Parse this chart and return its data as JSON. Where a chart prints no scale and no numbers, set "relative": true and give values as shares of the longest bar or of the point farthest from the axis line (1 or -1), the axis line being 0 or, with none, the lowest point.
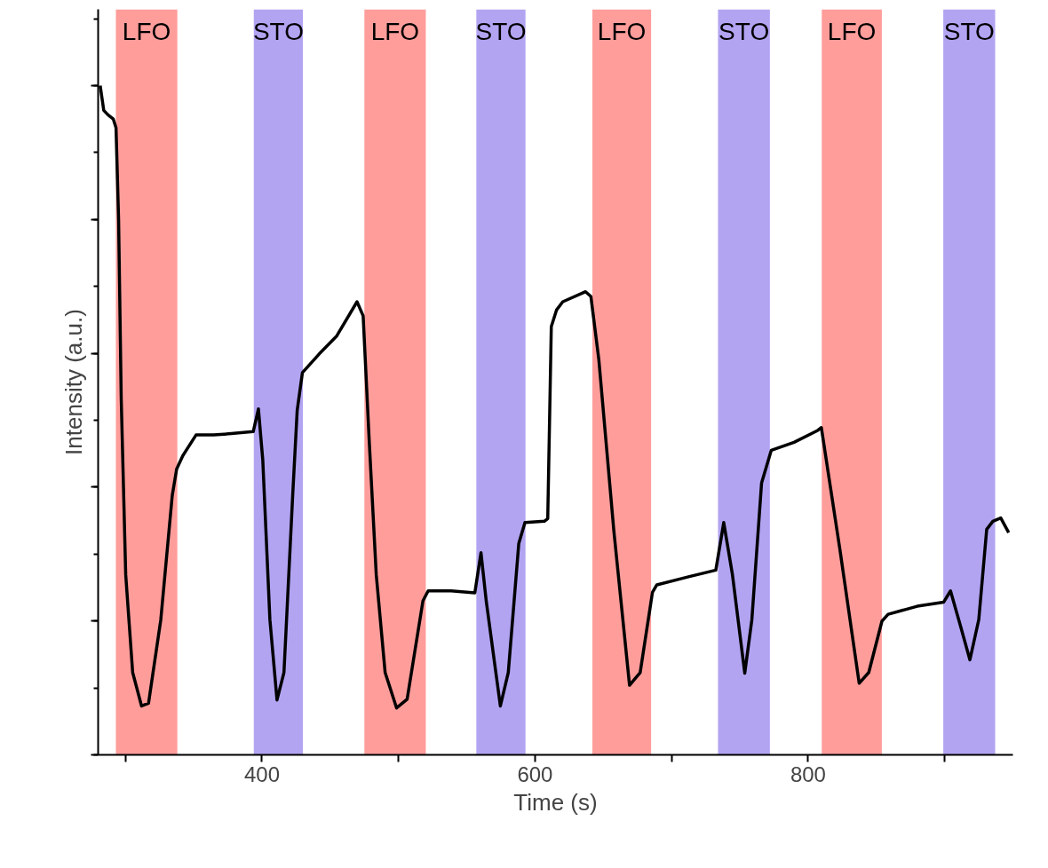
{
  "chart_data": {
    "type": "line",
    "xlabel": "Time (s)",
    "ylabel": "Intensity (a.u.)",
    "relative": true,
    "grid": false,
    "marker": "none",
    "line_style": "solid",
    "xlim": [
      280,
      950
    ],
    "xticks": [
      {
        "value": 300,
        "label": null
      },
      400,
      {
        "value": 500,
        "label": null
      },
      600,
      {
        "value": 700,
        "label": null
      },
      800,
      {
        "value": 900,
        "label": null
      }
    ],
    "bands": [
      {
        "axis": "x",
        "from": 293,
        "to": 338,
        "label": "LFO",
        "color": "#ff9d9b"
      },
      {
        "axis": "x",
        "from": 394,
        "to": 430,
        "label": "STO",
        "color": "#b3a4f2"
      },
      {
        "axis": "x",
        "from": 475,
        "to": 520,
        "label": "LFO",
        "color": "#ff9d9b"
      },
      {
        "axis": "x",
        "from": 557,
        "to": 593,
        "label": "STO",
        "color": "#b3a4f2"
      },
      {
        "axis": "x",
        "from": 642,
        "to": 685,
        "label": "LFO",
        "color": "#ff9d9b"
      },
      {
        "axis": "x",
        "from": 734,
        "to": 772,
        "label": "STO",
        "color": "#b3a4f2"
      },
      {
        "axis": "x",
        "from": 810,
        "to": 854,
        "label": "LFO",
        "color": "#ff9d9b"
      },
      {
        "axis": "x",
        "from": 899,
        "to": 937,
        "label": "STO",
        "color": "#b3a4f2"
      }
    ],
    "series": [
      {
        "color": "#000000",
        "x": [
          281.5,
          284.1,
          287.4,
          291.1,
          293.1,
          295.0,
          296.9,
          300.2,
          305.3,
          311.8,
          316.9,
          325.9,
          334.3,
          337.5,
          342.0,
          351.7,
          364.6,
          377.5,
          393.6,
          397.4,
          400.6,
          405.8,
          411.0,
          416.1,
          422.5,
          425.8,
          429.6,
          441.9,
          454.8,
          469.6,
          474.1,
          478.6,
          483.7,
          490.2,
          498.6,
          506.3,
          517.9,
          521.7,
          538.5,
          555.9,
          560.4,
          564.3,
          574.6,
          580.4,
          588.1,
          592.6,
          606.8,
          609.3,
          611.9,
          615.8,
          620.3,
          637.0,
          640.9,
          646.7,
          657.7,
          669.2,
          677.0,
          686.0,
          689.2,
          712.4,
          732.4,
          738.2,
          744.6,
          753.6,
          758.8,
          765.9,
          773.0,
          789.7,
          806.4,
          809.7,
          823.2,
          837.4,
          844.4,
          854.1,
          858.6,
          879.9,
          899.2,
          904.3,
          912.1,
          918.5,
          925.0,
          930.8,
          935.3,
          941.1,
          946.9
        ],
        "values": [
          1.0,
          0.963,
          0.956,
          0.95,
          0.937,
          0.798,
          0.533,
          0.269,
          0.123,
          0.073,
          0.077,
          0.202,
          0.388,
          0.427,
          0.447,
          0.478,
          0.478,
          0.48,
          0.483,
          0.517,
          0.44,
          0.202,
          0.082,
          0.123,
          0.388,
          0.515,
          0.571,
          0.599,
          0.626,
          0.677,
          0.656,
          0.467,
          0.269,
          0.123,
          0.07,
          0.083,
          0.23,
          0.245,
          0.245,
          0.242,
          0.302,
          0.229,
          0.073,
          0.123,
          0.316,
          0.347,
          0.349,
          0.353,
          0.64,
          0.665,
          0.677,
          0.692,
          0.685,
          0.591,
          0.335,
          0.104,
          0.123,
          0.243,
          0.254,
          0.266,
          0.276,
          0.347,
          0.269,
          0.122,
          0.202,
          0.406,
          0.455,
          0.467,
          0.484,
          0.489,
          0.308,
          0.107,
          0.123,
          0.2,
          0.21,
          0.222,
          0.228,
          0.245,
          0.189,
          0.142,
          0.202,
          0.337,
          0.349,
          0.354,
          0.332
        ]
      }
    ]
  }
}
